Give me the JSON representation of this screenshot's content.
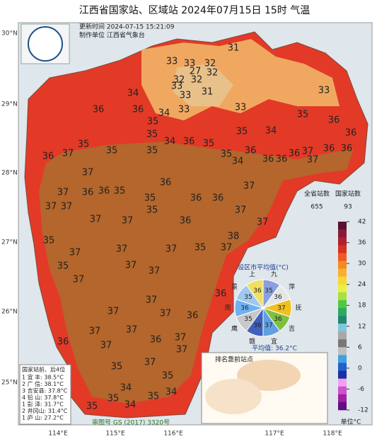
{
  "header": {
    "title": "江西省国家站、区域站    2024年07月15日 15时    气温",
    "updated": "更新时间  2024-07-15  15:21:09",
    "maker": "制作单位  江西省气象台"
  },
  "axes": {
    "lat": [
      "30°N",
      "29°N",
      "28°N",
      "27°N",
      "26°N",
      "25°N"
    ],
    "lon": [
      "114°E",
      "115°E",
      "116°E",
      "117°E",
      "118°E"
    ]
  },
  "stations": {
    "values": [
      31,
      33,
      33,
      32,
      27,
      32,
      32,
      32,
      33,
      31,
      33,
      34,
      34,
      33,
      33,
      36,
      36,
      33,
      35,
      35,
      34,
      35,
      36,
      36,
      35,
      34,
      36,
      35,
      35,
      35,
      35,
      35,
      36,
      36,
      36,
      37,
      36,
      36,
      36,
      37,
      36,
      37,
      34,
      37,
      37,
      36,
      36,
      35,
      36,
      36,
      36,
      37,
      37,
      37,
      35,
      35,
      37,
      37,
      37,
      36,
      37,
      38,
      35,
      37,
      37,
      37,
      35,
      37,
      35,
      37,
      37,
      37,
      37,
      36,
      37,
      37,
      36,
      37,
      37,
      37,
      36,
      37,
      36,
      35,
      37,
      37,
      35,
      35,
      34,
      35,
      35,
      34,
      34
    ]
  },
  "legend": {
    "province_count_label": "全省站数",
    "province_count": "655",
    "national_count_label": "国家站数",
    "national_count": "93",
    "ticks": [
      42,
      36,
      30,
      24,
      18,
      12,
      6,
      0,
      -6,
      -12
    ],
    "unit": "单位°C"
  },
  "pie": {
    "title": "设区市平均值(°C)",
    "cities": [
      "九",
      "萍",
      "抚",
      "吉",
      "宜",
      "赣",
      "鹰",
      "南",
      "景",
      "上"
    ],
    "values": [
      35,
      36,
      37,
      36,
      37,
      36,
      35,
      36,
      35,
      36
    ],
    "average": "平均值: 36.2°C"
  },
  "ranking": {
    "title": "国家站前、后4位",
    "rows": [
      "1 宜  丰: 38.5°C",
      "2 广  信: 38.1°C",
      "3 吉安县: 37.8°C",
      "4 铅  山: 37.8°C",
      "1 彭  泽: 31.7°C",
      "2 井冈山: 31.4°C",
      "1 庐  山: 27.2°C"
    ]
  },
  "top_box": {
    "title": "排名靠前站点"
  },
  "map_no": "审图号  GS (2017) 3320号"
}
